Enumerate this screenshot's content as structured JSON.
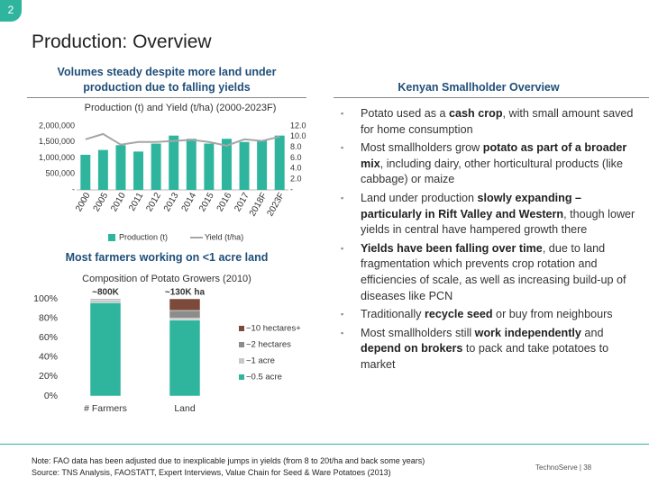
{
  "slide_number": "2",
  "title": "Production: Overview",
  "left_heading": "Volumes steady despite more land under production due to falling yields",
  "right_heading": "Kenyan Smallholder Overview",
  "second_heading": "Most farmers working on <1 acre land",
  "chart_data": [
    {
      "type": "combo",
      "title": "Production (t) and Yield (t/ha) (2000-2023F)",
      "categories": [
        "2000",
        "2005",
        "2010",
        "2011",
        "2012",
        "2013",
        "2014",
        "2015",
        "2016",
        "2017",
        "2018F",
        "2023F"
      ],
      "series": [
        {
          "name": "Production (t)",
          "color": "#2fb59d",
          "type": "bar",
          "values": [
            1100000,
            1250000,
            1400000,
            1200000,
            1450000,
            1700000,
            1600000,
            1450000,
            1600000,
            1500000,
            1550000,
            1700000
          ]
        },
        {
          "name": "Yield (t/ha)",
          "color": "#a6a6a6",
          "type": "line",
          "axis": "y2",
          "values": [
            9.5,
            10.5,
            8.5,
            9.0,
            9.0,
            9.2,
            9.4,
            9.0,
            8.3,
            9.5,
            9.2,
            10.0
          ]
        }
      ],
      "ylim": [
        0,
        2000000
      ],
      "yticks": [
        {
          "value": 0,
          "label": "-"
        },
        {
          "value": 500000,
          "label": "500,000"
        },
        {
          "value": 1000000,
          "label": "1,000,000"
        },
        {
          "value": 1500000,
          "label": "1,500,000"
        },
        {
          "value": 2000000,
          "label": "2,000,000"
        }
      ],
      "y2lim": [
        0,
        12
      ],
      "y2ticks": [
        {
          "value": 0,
          "label": "-"
        },
        {
          "value": 2,
          "label": "2.0"
        },
        {
          "value": 4,
          "label": "4.0"
        },
        {
          "value": 6,
          "label": "6.0"
        },
        {
          "value": 8,
          "label": "8.0"
        },
        {
          "value": 10,
          "label": "10.0"
        },
        {
          "value": 12,
          "label": "12.0"
        }
      ]
    },
    {
      "type": "stacked_bar",
      "title": "Composition of Potato Growers (2010)",
      "categories": [
        "# Farmers",
        "Land"
      ],
      "annotations": [
        "~800K",
        "~130K ha"
      ],
      "series": [
        {
          "name": "~0.5 acre",
          "color": "#2fb59d",
          "values": [
            96,
            78
          ]
        },
        {
          "name": "~1 acre",
          "color": "#c8c8c8",
          "values": [
            3,
            2
          ]
        },
        {
          "name": "~2 hectares",
          "color": "#8c8c8c",
          "values": [
            1,
            8
          ]
        },
        {
          "name": "~10 hectares+",
          "color": "#7b4a3a",
          "values": [
            0,
            12
          ]
        }
      ],
      "ylim": [
        0,
        100
      ],
      "yticks": [
        {
          "value": 0,
          "label": "0%"
        },
        {
          "value": 20,
          "label": "20%"
        },
        {
          "value": 40,
          "label": "40%"
        },
        {
          "value": 60,
          "label": "60%"
        },
        {
          "value": 80,
          "label": "80%"
        },
        {
          "value": 100,
          "label": "100%"
        }
      ]
    }
  ],
  "bullets": [
    [
      "Potato used as a ",
      "cash crop",
      ", with small amount saved for home consumption"
    ],
    [
      "Most smallholders grow ",
      "potato as part of a broader mix",
      ", including dairy, other horticultural products (like cabbage) or maize"
    ],
    [
      "Land under production ",
      "slowly expanding – particularly in Rift Valley and Western",
      ", though lower yields in central have hampered growth there"
    ],
    [
      "",
      "Yields have been falling over time",
      ", due to land fragmentation which prevents crop rotation and efficiencies of scale, as well as increasing build-up of diseases like PCN"
    ],
    [
      "Traditionally ",
      "recycle seed",
      " or buy from neighbours"
    ],
    [
      "Most smallholders still ",
      "work independently",
      " and ",
      "depend on brokers",
      " to pack and take potatoes to market"
    ]
  ],
  "note": "Note: FAO data has been adjusted due to inexplicable jumps in yields (from 8 to 20t/ha and back some years)",
  "source": "Source: TNS Analysis, FAOSTATT, Expert Interviews, Value Chain for Seed & Ware Potatoes (2013)",
  "footer": "TechnoServe | 38"
}
